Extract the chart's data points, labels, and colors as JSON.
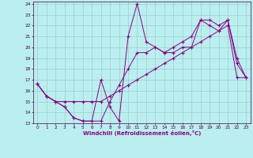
{
  "xlabel": "Windchill (Refroidissement éolien,°C)",
  "xlim": [
    -0.5,
    23.5
  ],
  "ylim": [
    13,
    24.2
  ],
  "yticks": [
    13,
    14,
    15,
    16,
    17,
    18,
    19,
    20,
    21,
    22,
    23,
    24
  ],
  "xticks": [
    0,
    1,
    2,
    3,
    4,
    5,
    6,
    7,
    8,
    9,
    10,
    11,
    12,
    13,
    14,
    15,
    16,
    17,
    18,
    19,
    20,
    21,
    22,
    23
  ],
  "line_color": "#880088",
  "bg_color": "#bbeeee",
  "grid_color": "#99cccc",
  "series": [
    [
      16.6,
      15.5,
      15.0,
      14.5,
      13.5,
      13.2,
      13.2,
      17.0,
      14.5,
      13.2,
      21.0,
      24.0,
      20.5,
      20.0,
      19.5,
      19.5,
      20.0,
      20.0,
      22.5,
      22.5,
      22.0,
      22.5,
      19.0,
      17.2
    ],
    [
      16.6,
      15.5,
      15.0,
      14.5,
      13.5,
      13.2,
      13.2,
      13.2,
      15.0,
      16.5,
      18.0,
      19.5,
      19.5,
      20.0,
      19.5,
      20.0,
      20.5,
      21.0,
      22.5,
      22.0,
      21.5,
      22.5,
      18.5,
      17.2
    ],
    [
      16.6,
      15.5,
      15.0,
      15.0,
      15.0,
      15.0,
      15.0,
      15.0,
      15.5,
      16.0,
      16.5,
      17.0,
      17.5,
      18.0,
      18.5,
      19.0,
      19.5,
      20.0,
      20.5,
      21.0,
      21.5,
      22.0,
      17.2,
      17.2
    ]
  ]
}
